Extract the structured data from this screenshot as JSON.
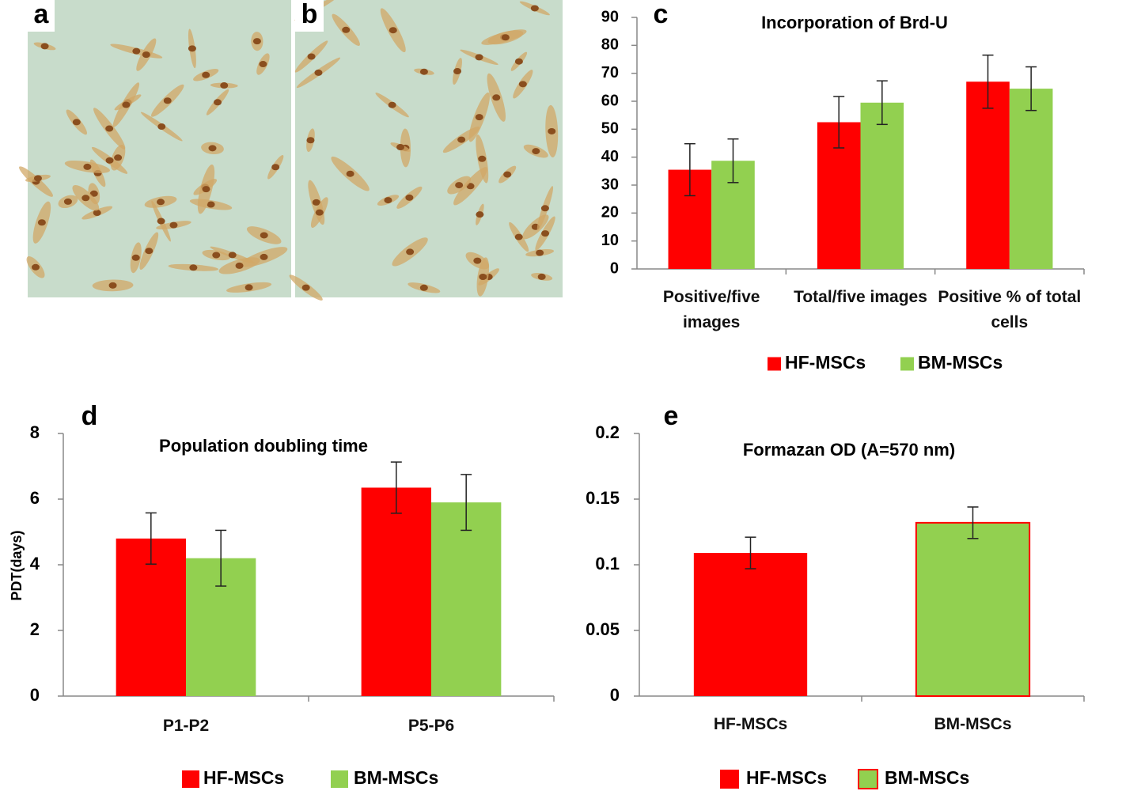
{
  "images": [
    {
      "label": "a"
    },
    {
      "label": "b"
    }
  ],
  "chart_data": [
    {
      "type": "bar",
      "panel_label": "c",
      "title": "Incorporation of Brd-U",
      "categories": [
        "Positive/five images",
        "Total/five images",
        "Positive % of total cells"
      ],
      "series": [
        {
          "name": "HF-MSCs",
          "color": "#ff0000",
          "values": [
            35.5,
            52.5,
            67
          ],
          "errors": [
            9.3,
            9.2,
            9.5
          ]
        },
        {
          "name": "BM-MSCs",
          "color": "#92d050",
          "values": [
            38.7,
            59.5,
            64.5
          ],
          "errors": [
            7.8,
            7.8,
            7.8
          ]
        }
      ],
      "ylim": [
        0,
        90
      ],
      "yticks": [
        0,
        10,
        20,
        30,
        40,
        50,
        60,
        70,
        80,
        90
      ],
      "legend": "bottom"
    },
    {
      "type": "bar",
      "panel_label": "d",
      "title": "Population doubling time",
      "y_label": "PDT(days)",
      "categories": [
        "P1-P2",
        "P5-P6"
      ],
      "series": [
        {
          "name": "HF-MSCs",
          "color": "#ff0000",
          "values": [
            4.8,
            6.35
          ],
          "errors": [
            0.78,
            0.78
          ]
        },
        {
          "name": "BM-MSCs",
          "color": "#92d050",
          "values": [
            4.2,
            5.9
          ],
          "errors": [
            0.85,
            0.85
          ]
        }
      ],
      "ylim": [
        0,
        8
      ],
      "yticks": [
        0,
        2,
        4,
        6,
        8
      ],
      "legend": "bottom"
    },
    {
      "type": "bar",
      "panel_label": "e",
      "title": "Formazan OD (A=570 nm)",
      "categories": [
        "HF-MSCs",
        "BM-MSCs"
      ],
      "series": [
        {
          "name": "HF-MSCs",
          "color": "#ff0000",
          "values": [
            0.109,
            null
          ],
          "errors": [
            0.012,
            null
          ]
        },
        {
          "name": "BM-MSCs",
          "color": "#92d050",
          "edge_color": "#ff0000",
          "values": [
            null,
            0.132
          ],
          "errors": [
            null,
            0.012
          ]
        }
      ],
      "ylim": [
        0,
        0.2
      ],
      "yticks": [
        0,
        0.05,
        0.1,
        0.15,
        0.2
      ],
      "legend": "bottom"
    }
  ]
}
